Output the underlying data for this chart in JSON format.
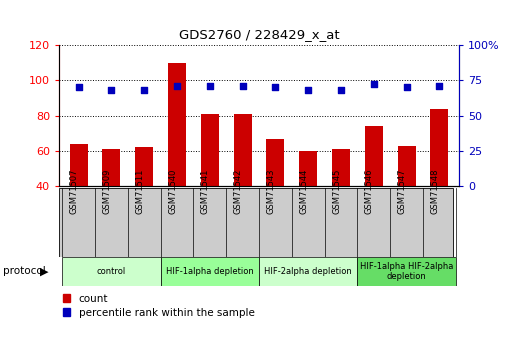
{
  "title": "GDS2760 / 228429_x_at",
  "samples": [
    "GSM71507",
    "GSM71509",
    "GSM71511",
    "GSM71540",
    "GSM71541",
    "GSM71542",
    "GSM71543",
    "GSM71544",
    "GSM71545",
    "GSM71546",
    "GSM71547",
    "GSM71548"
  ],
  "counts": [
    64,
    61,
    62,
    110,
    81,
    81,
    67,
    60,
    61,
    74,
    63,
    84
  ],
  "percentile_ranks": [
    70,
    68,
    68,
    71,
    71,
    71,
    70,
    68,
    68,
    72,
    70,
    71
  ],
  "ylim_left": [
    40,
    120
  ],
  "ylim_right": [
    0,
    100
  ],
  "yticks_left": [
    40,
    60,
    80,
    100,
    120
  ],
  "yticks_right": [
    0,
    25,
    50,
    75,
    100
  ],
  "yticks_right_labels": [
    "0",
    "25",
    "50",
    "75",
    "100%"
  ],
  "bar_color": "#cc0000",
  "dot_color": "#0000bb",
  "bg_color": "#ffffff",
  "tick_area_color": "#cccccc",
  "protocol_groups": [
    {
      "label": "control",
      "start": 0,
      "end": 3,
      "color": "#ccffcc"
    },
    {
      "label": "HIF-1alpha depletion",
      "start": 3,
      "end": 6,
      "color": "#99ff99"
    },
    {
      "label": "HIF-2alpha depletion",
      "start": 6,
      "end": 9,
      "color": "#ccffcc"
    },
    {
      "label": "HIF-1alpha HIF-2alpha\ndepletion",
      "start": 9,
      "end": 12,
      "color": "#66dd66"
    }
  ],
  "legend_count_color": "#cc0000",
  "legend_pct_color": "#0000bb",
  "protocol_label": "protocol"
}
